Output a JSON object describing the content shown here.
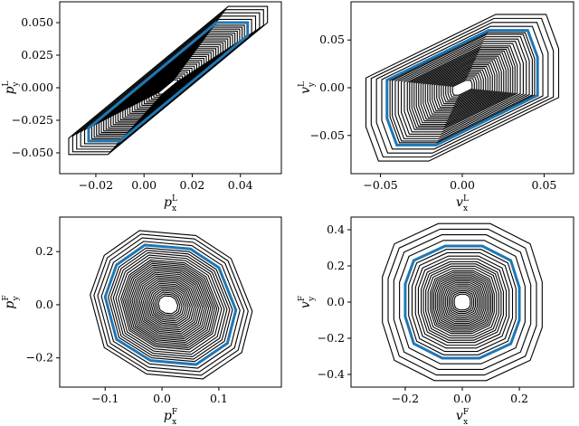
{
  "colors": {
    "contour": "#000000",
    "highlight": "#1f77b4",
    "frame": "#000000"
  },
  "chart_data": [
    {
      "type": "line",
      "panel": "top-left",
      "title": "",
      "xlabel": {
        "base": "p",
        "sub": "x",
        "sup": "L"
      },
      "ylabel": {
        "base": "p",
        "sub": "y",
        "sup": "L"
      },
      "xlim": [
        -0.035,
        0.057
      ],
      "ylim": [
        -0.066,
        0.066
      ],
      "xticks": [
        "−0.02",
        "0.00",
        "0.02",
        "0.04"
      ],
      "xtick_values": [
        -0.02,
        0.0,
        0.02,
        0.04
      ],
      "yticks": [
        "−0.050",
        "−0.025",
        "0.000",
        "0.025",
        "0.050"
      ],
      "ytick_values": [
        -0.05,
        -0.025,
        0.0,
        0.025,
        0.05
      ],
      "center": [
        0.01,
        0.0
      ],
      "shape": [
        [
          0.03,
          0.05
        ],
        [
          0.043,
          0.05
        ],
        [
          0.043,
          0.04
        ],
        [
          -0.01,
          -0.041
        ],
        [
          -0.023,
          -0.041
        ],
        [
          -0.023,
          -0.031
        ]
      ],
      "scales": [
        0.12,
        0.15,
        0.18,
        0.21,
        0.24,
        0.27,
        0.3,
        0.33,
        0.36,
        0.39,
        0.42,
        0.45,
        0.48,
        0.51,
        0.54,
        0.57,
        0.6,
        0.63,
        0.66,
        0.69,
        0.72,
        0.75,
        0.78,
        0.81,
        0.84,
        0.87,
        0.9,
        0.93,
        0.96,
        1.0,
        1.05,
        1.1,
        1.15,
        1.2,
        1.25
      ],
      "highlight_scale": 1.0
    },
    {
      "type": "line",
      "panel": "top-right",
      "title": "",
      "xlabel": {
        "base": "v",
        "sub": "x",
        "sup": "L"
      },
      "ylabel": {
        "base": "v",
        "sub": "y",
        "sup": "L"
      },
      "xlim": [
        -0.068,
        0.068
      ],
      "ylim": [
        -0.09,
        0.09
      ],
      "xticks": [
        "−0.05",
        "0.00",
        "0.05"
      ],
      "xtick_values": [
        -0.05,
        0.0,
        0.05
      ],
      "yticks": [
        "−0.05",
        "0.00",
        "0.05"
      ],
      "ytick_values": [
        -0.05,
        0.0,
        0.05
      ],
      "center": [
        0.0,
        0.0
      ],
      "shape": [
        [
          0.016,
          0.06
        ],
        [
          0.04,
          0.06
        ],
        [
          0.046,
          0.032
        ],
        [
          0.046,
          -0.008
        ],
        [
          -0.016,
          -0.06
        ],
        [
          -0.04,
          -0.06
        ],
        [
          -0.046,
          -0.032
        ],
        [
          -0.046,
          0.008
        ]
      ],
      "scales": [
        0.13,
        0.16,
        0.19,
        0.22,
        0.25,
        0.28,
        0.31,
        0.34,
        0.37,
        0.4,
        0.43,
        0.46,
        0.49,
        0.52,
        0.55,
        0.58,
        0.61,
        0.64,
        0.67,
        0.7,
        0.73,
        0.77,
        0.81,
        0.85,
        0.89,
        0.93,
        0.96,
        1.0,
        1.07,
        1.14,
        1.21,
        1.28
      ],
      "highlight_scale": 1.0
    },
    {
      "type": "line",
      "panel": "bottom-left",
      "title": "",
      "xlabel": {
        "base": "p",
        "sub": "x",
        "sup": "F"
      },
      "ylabel": {
        "base": "p",
        "sub": "y",
        "sup": "F"
      },
      "xlim": [
        -0.18,
        0.21
      ],
      "ylim": [
        -0.31,
        0.33
      ],
      "xticks": [
        "−0.1",
        "0.0",
        "0.1"
      ],
      "xtick_values": [
        -0.1,
        0.0,
        0.1
      ],
      "yticks": [
        "−0.2",
        "0.0",
        "0.2"
      ],
      "ytick_values": [
        -0.2,
        0.0,
        0.2
      ],
      "center": [
        0.01,
        0.0
      ],
      "shape": [
        [
          -0.03,
          0.225
        ],
        [
          0.05,
          0.21
        ],
        [
          0.1,
          0.14
        ],
        [
          0.13,
          -0.02
        ],
        [
          0.115,
          -0.145
        ],
        [
          0.06,
          -0.225
        ],
        [
          -0.02,
          -0.21
        ],
        [
          -0.08,
          -0.13
        ],
        [
          -0.1,
          0.03
        ],
        [
          -0.08,
          0.15
        ]
      ],
      "scales": [
        0.15,
        0.18,
        0.21,
        0.24,
        0.27,
        0.3,
        0.33,
        0.36,
        0.39,
        0.42,
        0.45,
        0.48,
        0.51,
        0.54,
        0.57,
        0.6,
        0.63,
        0.66,
        0.69,
        0.72,
        0.75,
        0.79,
        0.83,
        0.87,
        0.91,
        0.95,
        1.0,
        1.06,
        1.12,
        1.18,
        1.24
      ],
      "highlight_scale": 1.0
    },
    {
      "type": "line",
      "panel": "bottom-right",
      "title": "",
      "xlabel": {
        "base": "v",
        "sub": "x",
        "sup": "F"
      },
      "ylabel": {
        "base": "v",
        "sub": "y",
        "sup": "F"
      },
      "xlim": [
        -0.39,
        0.39
      ],
      "ylim": [
        -0.47,
        0.47
      ],
      "xticks": [
        "−0.2",
        "0.0",
        "0.2"
      ],
      "xtick_values": [
        -0.2,
        0.0,
        0.2
      ],
      "yticks": [
        "−0.4",
        "−0.2",
        "0.0",
        "0.2",
        "0.4"
      ],
      "ytick_values": [
        -0.4,
        -0.2,
        0.0,
        0.2,
        0.4
      ],
      "center": [
        0.0,
        0.0
      ],
      "shape": [
        [
          -0.06,
          0.31
        ],
        [
          0.07,
          0.31
        ],
        [
          0.17,
          0.23
        ],
        [
          0.2,
          0.08
        ],
        [
          0.2,
          -0.1
        ],
        [
          0.17,
          -0.23
        ],
        [
          0.06,
          -0.31
        ],
        [
          -0.07,
          -0.31
        ],
        [
          -0.17,
          -0.23
        ],
        [
          -0.2,
          -0.08
        ],
        [
          -0.2,
          0.1
        ],
        [
          -0.17,
          0.23
        ]
      ],
      "scales": [
        0.14,
        0.17,
        0.2,
        0.23,
        0.26,
        0.29,
        0.32,
        0.35,
        0.38,
        0.41,
        0.44,
        0.47,
        0.5,
        0.53,
        0.56,
        0.6,
        0.64,
        0.68,
        0.72,
        0.77,
        0.82,
        0.88,
        0.94,
        1.0,
        1.1,
        1.2,
        1.3,
        1.4
      ],
      "highlight_scale": 1.0
    }
  ]
}
